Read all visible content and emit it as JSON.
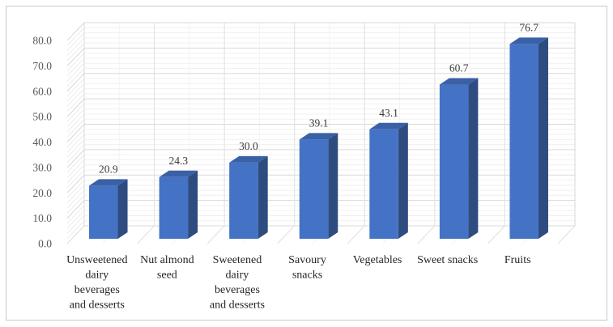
{
  "chart_data": {
    "type": "bar",
    "variant": "3d-column",
    "title": "",
    "xlabel": "",
    "ylabel": "",
    "categories": [
      "Unsweetened dairy beverages and desserts",
      "Nut almond seed",
      "Sweetened dairy beverages and desserts",
      "Savoury snacks",
      "Vegetables",
      "Sweet snacks",
      "Fruits"
    ],
    "category_lines": [
      [
        "Unsweetened",
        "dairy",
        "beverages",
        "and desserts"
      ],
      [
        "Nut almond",
        "seed"
      ],
      [
        "Sweetened",
        "dairy",
        "beverages",
        "and desserts"
      ],
      [
        "Savoury",
        "snacks"
      ],
      [
        "Vegetables"
      ],
      [
        "Sweet snacks"
      ],
      [
        "Fruits"
      ]
    ],
    "values": [
      20.9,
      24.3,
      30.0,
      39.1,
      43.1,
      60.7,
      76.7
    ],
    "data_labels": [
      "20.9",
      "24.3",
      "30.0",
      "39.1",
      "43.1",
      "60.7",
      "76.7"
    ],
    "ylim": [
      0,
      80
    ],
    "ytick_step": 10,
    "yminor_step": 2,
    "ytick_labels": [
      "0.0",
      "10.0",
      "20.0",
      "30.0",
      "40.0",
      "50.0",
      "60.0",
      "70.0",
      "80.0"
    ],
    "grid": true,
    "legend": false,
    "colors": {
      "bar_front": "#4472C4",
      "bar_top": "#3A60A6",
      "bar_side": "#2E4C80",
      "grid_major": "#D9D9D9",
      "grid_minor": "#F0F0F0",
      "grid_vertical": "#E0E0E0",
      "grid_vertical_minor": "#F3F3F3",
      "hatch_major": "#D9D9D9",
      "hatch_minor": "#ECECEC",
      "axis_text": "#595959",
      "data_label_text": "#3B3B3B",
      "category_text": "#262626",
      "figure_border": "#C9C9C9",
      "background": "#FFFFFF"
    }
  }
}
